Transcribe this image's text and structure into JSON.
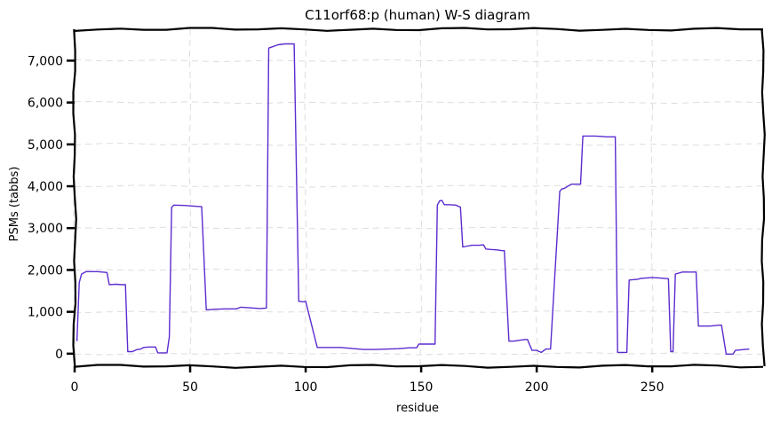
{
  "chart_data": {
    "type": "line",
    "title": "C11orf68:p (human) W-S diagram",
    "xlabel": "residue",
    "ylabel": "PSMs (tabbs)",
    "xlim": [
      0,
      298
    ],
    "ylim": [
      -300,
      7750
    ],
    "x_ticks": [
      0,
      50,
      100,
      150,
      200,
      250
    ],
    "y_ticks": [
      0,
      1000,
      2000,
      3000,
      4000,
      5000,
      6000,
      7000
    ],
    "y_tick_labels": [
      "0",
      "1,000",
      "2,000",
      "3,000",
      "4,000",
      "5,000",
      "6,000",
      "7,000"
    ],
    "grid": true,
    "line_color": "#5b2ccf",
    "series": [
      {
        "x": [
          1,
          2,
          3,
          5,
          10,
          14,
          15,
          18,
          20,
          22,
          23,
          25,
          27,
          28,
          30,
          32,
          35,
          36,
          37,
          40,
          41,
          42,
          43,
          48,
          50,
          55,
          57,
          58,
          60,
          65,
          70,
          72,
          75,
          80,
          83,
          84,
          85,
          88,
          91,
          94,
          95,
          97,
          99,
          100,
          105,
          106,
          108,
          115,
          125,
          130,
          140,
          145,
          148,
          149,
          150,
          155,
          156,
          157,
          158,
          159,
          160,
          162,
          165,
          167,
          168,
          170,
          172,
          175,
          177,
          178,
          180,
          183,
          185,
          186,
          188,
          190,
          195,
          196,
          198,
          200,
          202,
          204,
          206,
          210,
          211,
          212,
          215,
          219,
          220,
          225,
          228,
          230,
          234,
          235,
          236,
          238,
          239,
          240,
          244,
          245,
          250,
          253,
          257,
          258,
          259,
          260,
          263,
          268,
          269,
          270,
          275,
          279,
          280,
          282,
          285,
          286,
          292
        ],
        "values": [
          300,
          1700,
          1900,
          1960,
          1960,
          1940,
          1650,
          1660,
          1650,
          1650,
          50,
          50,
          100,
          100,
          150,
          160,
          160,
          20,
          20,
          20,
          400,
          3500,
          3550,
          3540,
          3530,
          3510,
          1050,
          1050,
          1060,
          1070,
          1070,
          1110,
          1100,
          1080,
          1090,
          7300,
          7320,
          7380,
          7400,
          7400,
          7400,
          1250,
          1240,
          1250,
          150,
          150,
          150,
          150,
          100,
          100,
          120,
          140,
          140,
          230,
          230,
          230,
          230,
          3550,
          3650,
          3660,
          3560,
          3560,
          3550,
          3500,
          2550,
          2570,
          2590,
          2590,
          2600,
          2500,
          2490,
          2480,
          2460,
          2460,
          300,
          300,
          340,
          340,
          80,
          80,
          30,
          110,
          110,
          3880,
          3940,
          3950,
          4050,
          4050,
          5200,
          5200,
          5190,
          5180,
          5180,
          30,
          30,
          30,
          30,
          1760,
          1780,
          1800,
          1820,
          1810,
          1790,
          50,
          50,
          1900,
          1950,
          1950,
          1950,
          660,
          660,
          680,
          680,
          -10,
          -10,
          80,
          110
        ]
      }
    ]
  }
}
